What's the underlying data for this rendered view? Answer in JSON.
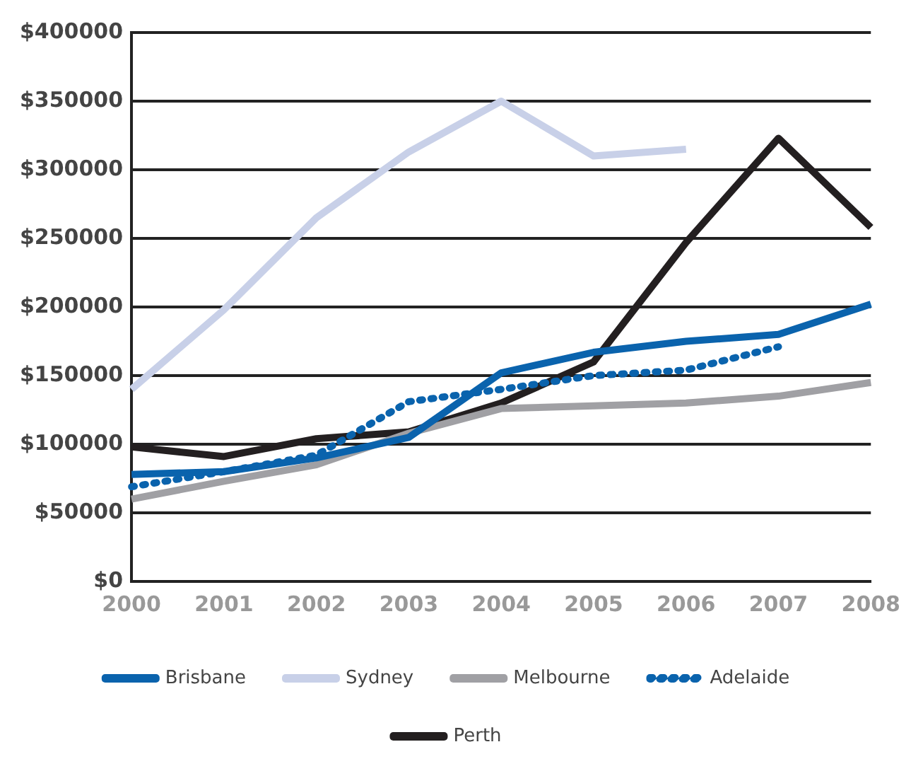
{
  "chart_data": {
    "type": "line",
    "categories": [
      "2000",
      "2001",
      "2002",
      "2003",
      "2004",
      "2005",
      "2006",
      "2007",
      "2008"
    ],
    "series": [
      {
        "name": "Brisbane",
        "color": "#0a63ad",
        "values": [
          78000,
          80000,
          90000,
          105000,
          152000,
          167000,
          175000,
          180000,
          202000
        ]
      },
      {
        "name": "Sydney",
        "color": "#c8d0e8",
        "values": [
          140000,
          198000,
          265000,
          313000,
          350000,
          310000,
          315000,
          null,
          null
        ]
      },
      {
        "name": "Melbourne",
        "color": "#a0a0a4",
        "values": [
          60000,
          73000,
          85000,
          108000,
          126000,
          128000,
          130000,
          135000,
          145000
        ]
      },
      {
        "name": "Adelaide",
        "color": "#0a63ad",
        "line_style": "dotted",
        "values": [
          69000,
          80000,
          92000,
          131000,
          140000,
          150000,
          154000,
          171000,
          null
        ]
      },
      {
        "name": "Perth",
        "color": "#231f20",
        "values": [
          98000,
          91000,
          104000,
          109000,
          130000,
          160000,
          247000,
          323000,
          258000
        ]
      }
    ],
    "ylim": [
      0,
      400000
    ],
    "yticks": [
      {
        "value": 0,
        "label": "$0"
      },
      {
        "value": 50000,
        "label": "$50000"
      },
      {
        "value": 100000,
        "label": "$100000"
      },
      {
        "value": 150000,
        "label": "$150000"
      },
      {
        "value": 200000,
        "label": "$200000"
      },
      {
        "value": 250000,
        "label": "$250000"
      },
      {
        "value": 300000,
        "label": "$300000"
      },
      {
        "value": 350000,
        "label": "$350000"
      },
      {
        "value": 400000,
        "label": "$400000"
      }
    ],
    "grid": "y",
    "legend": "bottom",
    "marker": "none",
    "line_style": "solid"
  }
}
